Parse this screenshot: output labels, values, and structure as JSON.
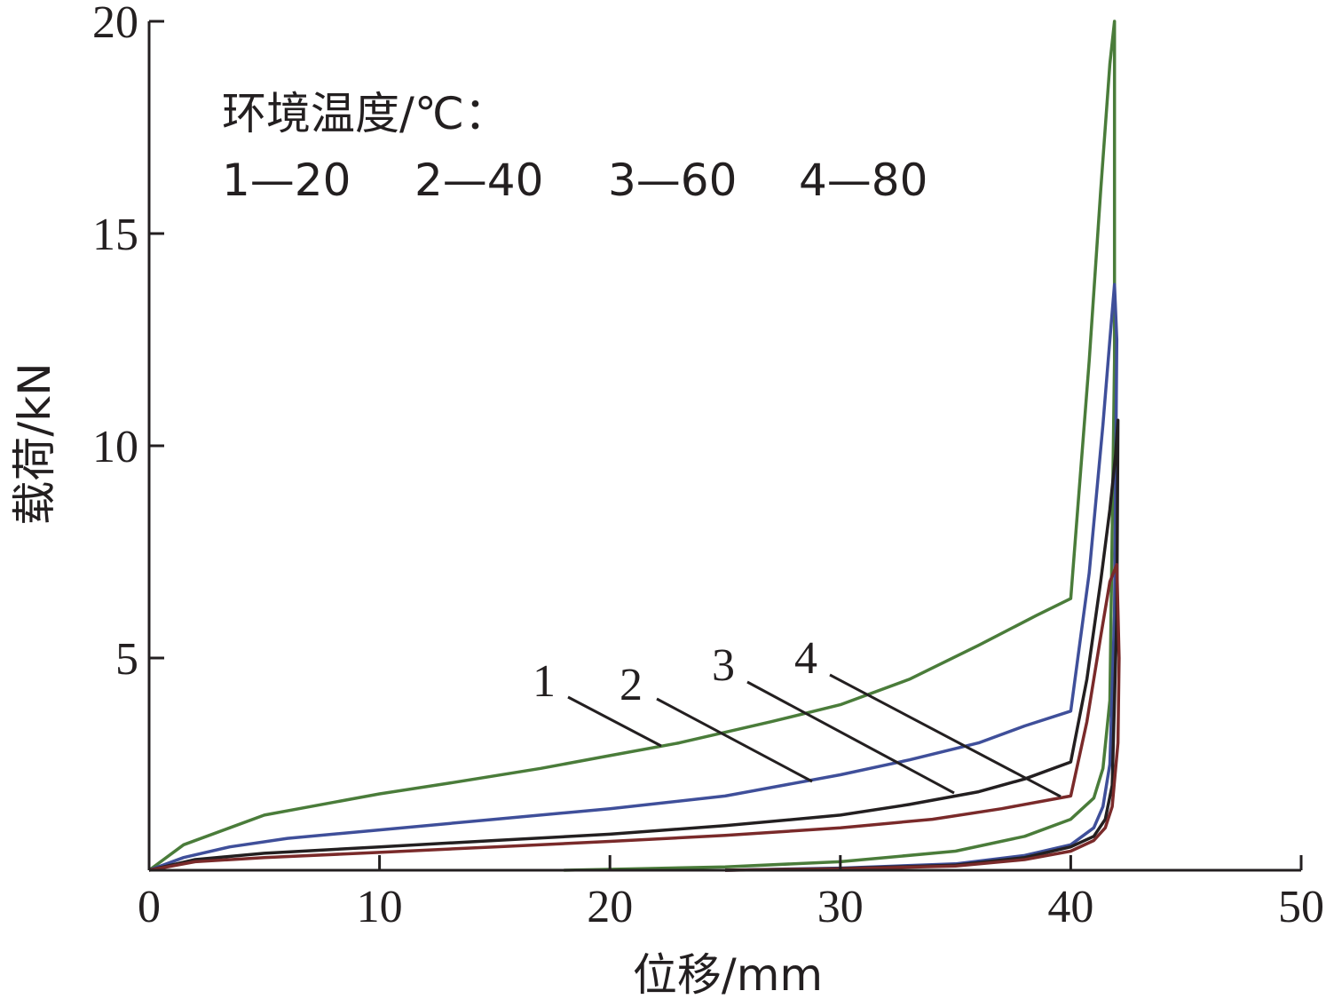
{
  "chart_data": {
    "type": "line",
    "xlabel": "位移/mm",
    "ylabel": "载荷/kN",
    "xlim": [
      0,
      50
    ],
    "ylim": [
      0,
      20
    ],
    "x_ticks": [
      "0",
      "10",
      "20",
      "30",
      "40",
      "50"
    ],
    "y_ticks": [
      "5",
      "10",
      "15",
      "20"
    ],
    "grid": false,
    "legend": {
      "title": "环境温度/℃：",
      "entries": [
        "1—20",
        "2—40",
        "3—60",
        "4—80"
      ],
      "placement": "top-left"
    },
    "curve_labels": [
      "1",
      "2",
      "3",
      "4"
    ],
    "series": [
      {
        "name": "1—20",
        "color": "#4a7c3a",
        "x": [
          0,
          1.5,
          3.5,
          5,
          7,
          10,
          13,
          17,
          20,
          23,
          27,
          30,
          33,
          36,
          38.5,
          40,
          40.8,
          41.3,
          41.7,
          41.9,
          41.9,
          41.7,
          41.4,
          41,
          40,
          38,
          35,
          30,
          25,
          20,
          18
        ],
        "y": [
          0,
          0.6,
          1.0,
          1.3,
          1.5,
          1.8,
          2.05,
          2.4,
          2.7,
          3.0,
          3.5,
          3.9,
          4.5,
          5.3,
          6.0,
          6.4,
          12.0,
          16.0,
          19.0,
          20.0,
          12.0,
          4.0,
          2.4,
          1.7,
          1.2,
          0.8,
          0.45,
          0.2,
          0.08,
          0.02,
          0.0
        ]
      },
      {
        "name": "2—40",
        "color": "#3f4f9a",
        "x": [
          0,
          1.5,
          3.5,
          6,
          10,
          15,
          20,
          25,
          30,
          33,
          36,
          38,
          40,
          40.8,
          41.4,
          41.7,
          41.9,
          42.0,
          41.9,
          41.7,
          41.4,
          41,
          40,
          38,
          35,
          30,
          25
        ],
        "y": [
          0,
          0.3,
          0.55,
          0.75,
          0.95,
          1.2,
          1.45,
          1.75,
          2.25,
          2.6,
          3.0,
          3.4,
          3.75,
          7.0,
          10.5,
          12.5,
          13.8,
          12.5,
          6.0,
          2.5,
          1.5,
          1.0,
          0.6,
          0.35,
          0.15,
          0.05,
          0.0
        ]
      },
      {
        "name": "3—60",
        "color": "#231f20",
        "x": [
          0,
          2,
          5,
          10,
          15,
          20,
          25,
          30,
          33,
          36,
          38,
          40,
          40.7,
          41.3,
          41.7,
          41.95,
          42.05,
          42.0,
          41.8,
          41.5,
          41,
          40,
          38,
          35,
          30,
          25
        ],
        "y": [
          0,
          0.25,
          0.4,
          0.55,
          0.7,
          0.85,
          1.05,
          1.3,
          1.55,
          1.85,
          2.15,
          2.55,
          4.5,
          6.8,
          8.5,
          9.8,
          10.6,
          6.0,
          2.0,
          1.2,
          0.8,
          0.55,
          0.3,
          0.12,
          0.04,
          0.0
        ]
      },
      {
        "name": "4—80",
        "color": "#7a2a2a",
        "x": [
          0,
          2,
          5,
          10,
          15,
          20,
          25,
          30,
          34,
          37,
          39,
          40,
          40.7,
          41.3,
          41.7,
          42.0,
          42.1,
          42.05,
          41.8,
          41.5,
          41,
          40,
          38,
          35,
          30,
          25
        ],
        "y": [
          0,
          0.2,
          0.3,
          0.42,
          0.55,
          0.68,
          0.82,
          1.0,
          1.2,
          1.45,
          1.65,
          1.75,
          3.5,
          5.5,
          6.8,
          7.2,
          5.0,
          3.0,
          1.5,
          1.0,
          0.7,
          0.45,
          0.25,
          0.1,
          0.03,
          0.0
        ]
      }
    ]
  }
}
